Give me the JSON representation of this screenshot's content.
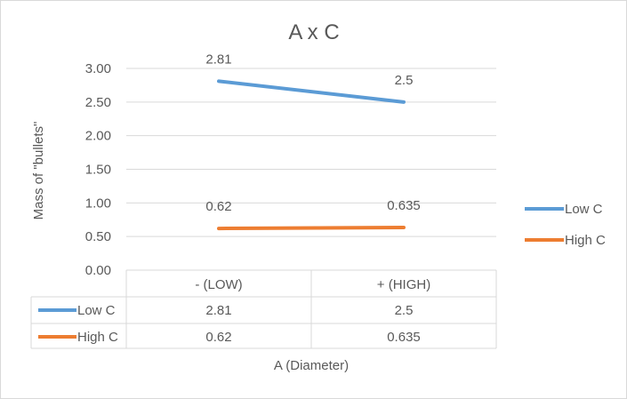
{
  "chart_data": {
    "type": "line",
    "title": "A x C",
    "xlabel": "A (Diameter)",
    "ylabel": "Mass of \"bullets\"",
    "categories": [
      "- (LOW)",
      "+ (HIGH)"
    ],
    "ylim": [
      0,
      3
    ],
    "yticks": [
      "0.00",
      "0.50",
      "1.00",
      "1.50",
      "2.00",
      "2.50",
      "3.00"
    ],
    "grid": true,
    "legend_position": "right",
    "data_table": true,
    "series": [
      {
        "name": "Low C",
        "values": [
          2.81,
          2.5
        ],
        "labels": [
          "2.81",
          "2.5"
        ],
        "color": "#5b9bd5"
      },
      {
        "name": "High C",
        "values": [
          0.62,
          0.635
        ],
        "labels": [
          "0.62",
          "0.635"
        ],
        "color": "#ed7d31"
      }
    ]
  }
}
